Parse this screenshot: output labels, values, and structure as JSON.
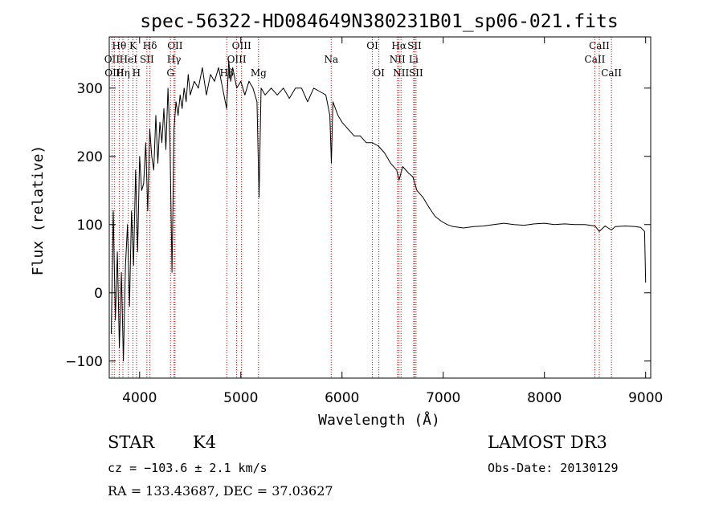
{
  "chart_data": {
    "type": "line",
    "title": "spec-56322-HD084649N380231B01_sp06-021.fits",
    "xlabel": "Wavelength (Å)",
    "ylabel": "Flux (relative)",
    "xlim": [
      3700,
      9050
    ],
    "ylim": [
      -125,
      375
    ],
    "xticks": [
      4000,
      5000,
      6000,
      7000,
      8000,
      9000
    ],
    "yticks": [
      -100,
      0,
      100,
      200,
      300
    ],
    "grid": false,
    "series": [
      {
        "name": "spectrum",
        "x": [
          3720,
          3740,
          3760,
          3780,
          3800,
          3820,
          3840,
          3860,
          3880,
          3900,
          3920,
          3940,
          3960,
          3980,
          4000,
          4020,
          4040,
          4060,
          4080,
          4100,
          4120,
          4140,
          4160,
          4180,
          4200,
          4220,
          4240,
          4260,
          4280,
          4300,
          4320,
          4340,
          4360,
          4380,
          4400,
          4420,
          4440,
          4460,
          4480,
          4500,
          4540,
          4580,
          4620,
          4660,
          4700,
          4740,
          4780,
          4820,
          4860,
          4880,
          4900,
          4920,
          4960,
          5000,
          5040,
          5080,
          5120,
          5160,
          5180,
          5200,
          5240,
          5300,
          5360,
          5420,
          5480,
          5540,
          5600,
          5660,
          5720,
          5780,
          5840,
          5880,
          5895,
          5910,
          5960,
          6000,
          6060,
          6120,
          6180,
          6240,
          6300,
          6360,
          6420,
          6480,
          6540,
          6563,
          6600,
          6660,
          6700,
          6740,
          6800,
          6860,
          6920,
          6980,
          7040,
          7100,
          7200,
          7300,
          7400,
          7500,
          7600,
          7700,
          7800,
          7900,
          8000,
          8100,
          8200,
          8300,
          8400,
          8500,
          8542,
          8600,
          8662,
          8700,
          8800,
          8900,
          8950,
          8990,
          9000
        ],
        "values": [
          -60,
          120,
          -40,
          60,
          -80,
          30,
          -100,
          40,
          100,
          -20,
          120,
          40,
          180,
          60,
          200,
          150,
          160,
          220,
          120,
          240,
          200,
          180,
          260,
          190,
          250,
          220,
          270,
          210,
          300,
          220,
          30,
          240,
          280,
          260,
          290,
          270,
          300,
          280,
          320,
          290,
          310,
          300,
          330,
          290,
          320,
          310,
          330,
          300,
          270,
          340,
          310,
          330,
          300,
          310,
          290,
          310,
          300,
          280,
          140,
          300,
          290,
          300,
          290,
          300,
          285,
          300,
          300,
          280,
          300,
          295,
          290,
          260,
          190,
          280,
          260,
          250,
          240,
          230,
          230,
          220,
          220,
          215,
          205,
          190,
          180,
          165,
          185,
          175,
          170,
          150,
          140,
          125,
          112,
          105,
          100,
          97,
          95,
          97,
          98,
          100,
          102,
          100,
          99,
          101,
          102,
          100,
          101,
          100,
          100,
          98,
          90,
          98,
          92,
          97,
          98,
          97,
          96,
          90,
          15
        ]
      }
    ],
    "lines": [
      {
        "label": "Hθ",
        "x": 3798,
        "row": 0
      },
      {
        "label": "K",
        "x": 3934,
        "row": 0
      },
      {
        "label": "Hδ",
        "x": 4102,
        "row": 0
      },
      {
        "label": "OII",
        "x": 4350,
        "row": 0
      },
      {
        "label": "OIII",
        "x": 5007,
        "row": 0
      },
      {
        "label": "OI",
        "x": 6300,
        "row": 0
      },
      {
        "label": "Hα",
        "x": 6563,
        "row": 0
      },
      {
        "label": "SII",
        "x": 6716,
        "row": 0
      },
      {
        "label": "CaII",
        "x": 8542,
        "row": 0
      },
      {
        "label": "OII",
        "x": 3727,
        "row": 1
      },
      {
        "label": "HeI",
        "x": 3889,
        "row": 1
      },
      {
        "label": "SII",
        "x": 4072,
        "row": 1
      },
      {
        "label": "Hγ",
        "x": 4340,
        "row": 1
      },
      {
        "label": "OIII",
        "x": 4959,
        "row": 1
      },
      {
        "label": "Na",
        "x": 5893,
        "row": 1
      },
      {
        "label": "NII",
        "x": 6548,
        "row": 1
      },
      {
        "label": "Li",
        "x": 6708,
        "row": 1
      },
      {
        "label": "CaII",
        "x": 8498,
        "row": 1
      },
      {
        "label": "OIII",
        "x": 3750,
        "row": 2
      },
      {
        "label": "Hη",
        "x": 3835,
        "row": 2
      },
      {
        "label": "H",
        "x": 3969,
        "row": 2
      },
      {
        "label": "G",
        "x": 4305,
        "row": 2
      },
      {
        "label": "Hβ",
        "x": 4861,
        "row": 2
      },
      {
        "label": "Mg",
        "x": 5175,
        "row": 2
      },
      {
        "label": "OI",
        "x": 6364,
        "row": 2
      },
      {
        "label": "NII",
        "x": 6583,
        "row": 2
      },
      {
        "label": "SII",
        "x": 6731,
        "row": 2
      },
      {
        "label": "CaII",
        "x": 8662,
        "row": 2
      }
    ]
  },
  "info": {
    "object_class": "STAR",
    "subclass": "K4",
    "survey": "LAMOST DR3",
    "redshift": "cz = −103.6 ± 2.1 km/s",
    "obs_date": "Obs-Date: 20130129",
    "coordinates": "RA = 133.43687, DEC =  37.03627"
  },
  "colors": {
    "spectrum": "#000000",
    "line_markers": "#cc0000",
    "axes": "#000000",
    "background": "#ffffff"
  }
}
